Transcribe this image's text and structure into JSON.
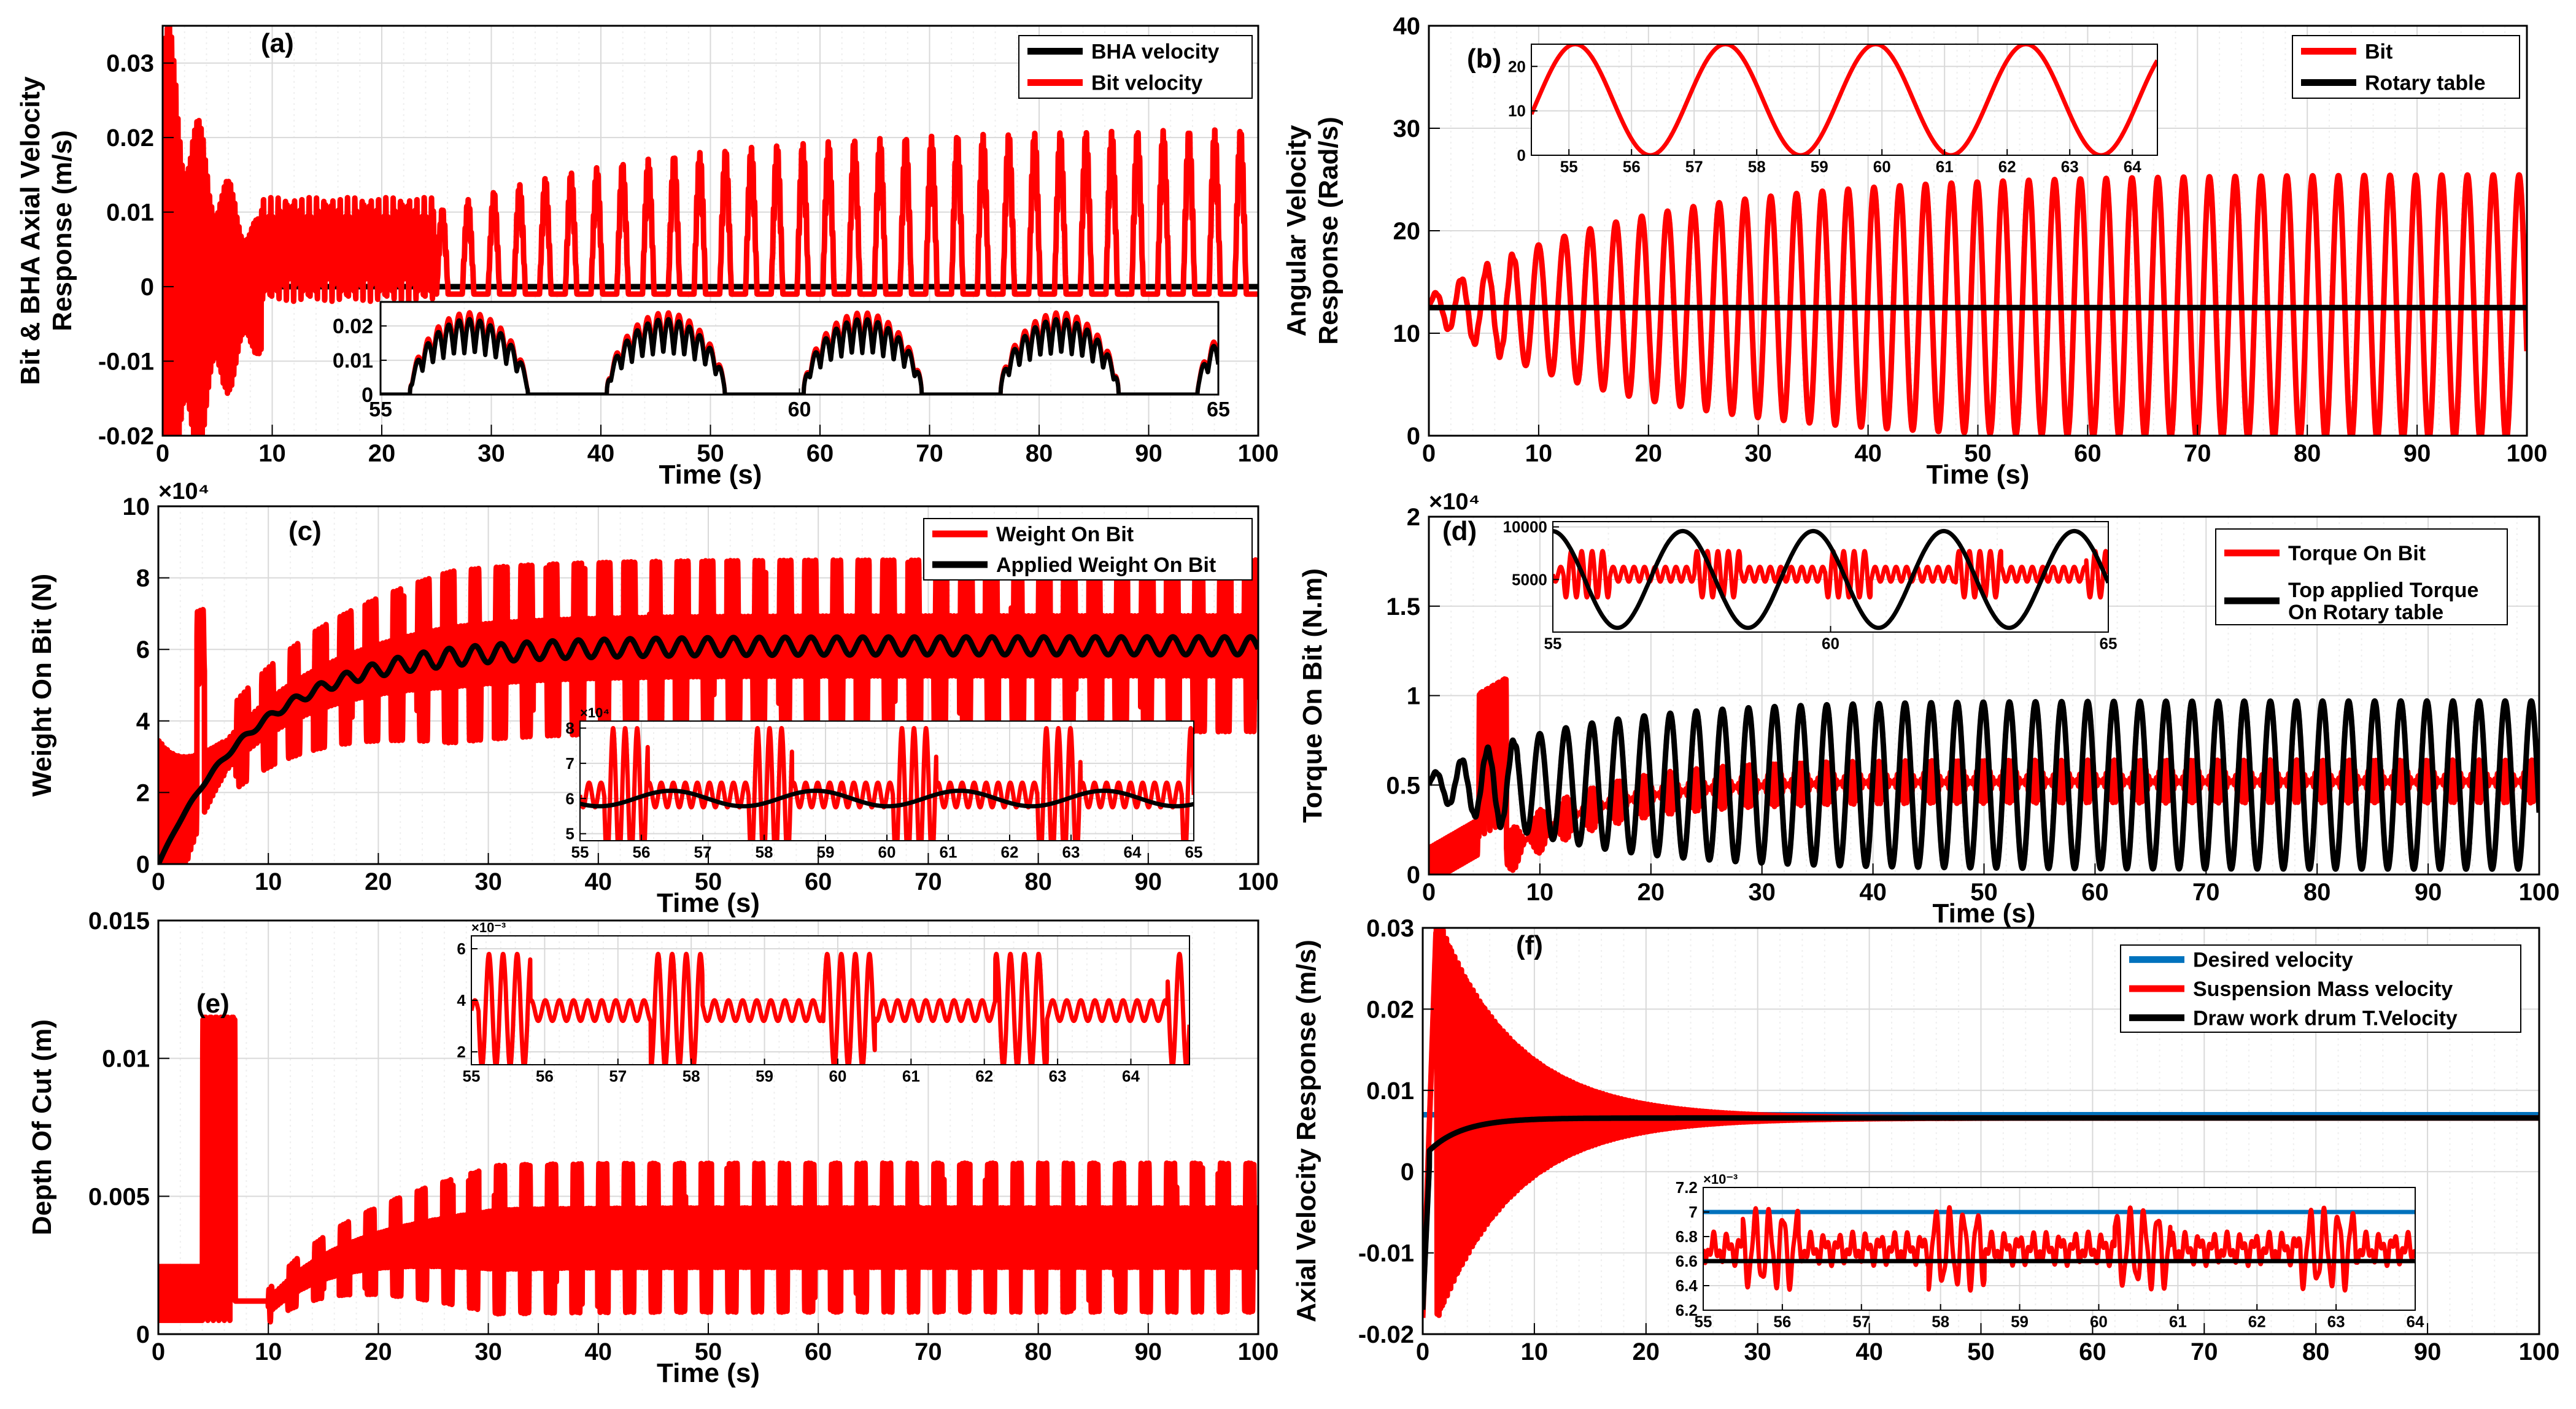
{
  "figure": {
    "panels": [
      "a",
      "b",
      "c",
      "d",
      "e",
      "f"
    ]
  },
  "colors": {
    "red": "#ff0000",
    "black": "#000000",
    "blue": "#0072bd",
    "grid": "#d9d9d9",
    "minor_grid": "#efefef"
  },
  "chart_data": [
    {
      "id": "a",
      "type": "line",
      "panel_label": "(a)",
      "xlabel": "Time (s)",
      "ylabel": [
        "Bit & BHA Axial Velocity",
        "Response (m/s)"
      ],
      "xlim": [
        0,
        100
      ],
      "ylim": [
        -0.02,
        0.035
      ],
      "xticks": [
        0,
        10,
        20,
        30,
        40,
        50,
        60,
        70,
        80,
        90,
        100
      ],
      "xtick_labels": [
        "0",
        "10",
        "20",
        "30",
        "40",
        "50",
        "60",
        "70",
        "80",
        "90",
        "100"
      ],
      "yticks": [
        -0.02,
        -0.01,
        0,
        0.01,
        0.02,
        0.03
      ],
      "ytick_labels": [
        "-0.02",
        "-0.01",
        "0",
        "0.01",
        "0.02",
        "0.03"
      ],
      "legend_position": "top-right",
      "series": [
        {
          "name": "BHA velocity",
          "color": "#000000",
          "model": "decay",
          "params": {
            "y0": 0,
            "yEnd": 0
          }
        },
        {
          "name": "Bit velocity",
          "color": "#ff0000",
          "model": "bitvel",
          "params": {
            "period": 2.35,
            "peak": 0.0225,
            "low": -0.001
          }
        }
      ],
      "inset": {
        "xlim": [
          55,
          65
        ],
        "ylim": [
          0,
          0.027
        ],
        "xticks": [
          55,
          60,
          65
        ],
        "xtick_labels": [
          "55",
          "60",
          "65"
        ],
        "yticks": [
          0,
          0.01,
          0.02
        ],
        "ytick_labels": [
          "0",
          "0.01",
          "0.02"
        ],
        "series": [
          {
            "name": "Bit velocity",
            "color": "#ff0000",
            "model": "inset_bursts",
            "params": {
              "period": 2.35,
              "peak": 0.024
            }
          },
          {
            "name": "BHA velocity",
            "color": "#000000",
            "model": "inset_bursts",
            "params": {
              "period": 2.35,
              "peak": 0.022
            }
          }
        ]
      }
    },
    {
      "id": "b",
      "type": "line",
      "panel_label": "(b)",
      "xlabel": "Time (s)",
      "ylabel": [
        "Angular  Velocity",
        "Response (Rad/s)"
      ],
      "xlim": [
        0,
        100
      ],
      "ylim": [
        0,
        40
      ],
      "xticks": [
        0,
        10,
        20,
        30,
        40,
        50,
        60,
        70,
        80,
        90,
        100
      ],
      "xtick_labels": [
        "0",
        "10",
        "20",
        "30",
        "40",
        "50",
        "60",
        "70",
        "80",
        "90",
        "100"
      ],
      "yticks": [
        0,
        10,
        20,
        30,
        40
      ],
      "ytick_labels": [
        "0",
        "10",
        "20",
        "30",
        "40"
      ],
      "legend_position": "top-right",
      "series": [
        {
          "name": "Bit",
          "color": "#ff0000",
          "model": "growsine",
          "params": {
            "mean": 12.5,
            "ampStart": 1,
            "ampEnd": 13,
            "tau": 18,
            "period": 2.35,
            "clip": 0
          }
        },
        {
          "name": "Rotary table",
          "color": "#000000",
          "model": "const",
          "params": {
            "value": 12.5
          }
        }
      ],
      "inset": {
        "xlim": [
          54.4,
          64.4
        ],
        "ylim": [
          0,
          25
        ],
        "xticks": [
          55,
          56,
          57,
          58,
          59,
          60,
          61,
          62,
          63,
          64
        ],
        "xtick_labels": [
          "55",
          "56",
          "57",
          "58",
          "59",
          "60",
          "61",
          "62",
          "63",
          "64"
        ],
        "yticks": [
          0,
          10,
          20
        ],
        "ytick_labels": [
          "0",
          "10",
          "20"
        ],
        "series": [
          {
            "name": "Bit",
            "color": "#ff0000",
            "model": "sine",
            "params": {
              "mean": 12.5,
              "amp": 12.5,
              "period": 2.4,
              "phase": 56.9,
              "clip": 0
            }
          }
        ]
      }
    },
    {
      "id": "c",
      "type": "line",
      "panel_label": "(c)",
      "xlabel": "Time (s)",
      "ylabel": [
        "Weight On Bit (N)"
      ],
      "exponent_label": "×10⁴",
      "xlim": [
        0,
        100
      ],
      "ylim": [
        0,
        10
      ],
      "xticks": [
        0,
        10,
        20,
        30,
        40,
        50,
        60,
        70,
        80,
        90,
        100
      ],
      "xtick_labels": [
        "0",
        "10",
        "20",
        "30",
        "40",
        "50",
        "60",
        "70",
        "80",
        "90",
        "100"
      ],
      "yticks": [
        0,
        2,
        4,
        6,
        8,
        10
      ],
      "ytick_labels": [
        "0",
        "2",
        "4",
        "6",
        "8",
        "10"
      ],
      "legend_position": "top-right",
      "series": [
        {
          "name": "Weight On Bit",
          "color": "#ff0000",
          "model": "wob",
          "params": {
            "final": 6.1,
            "tau": 9,
            "period": 2.35
          }
        },
        {
          "name": "Applied Weight On Bit",
          "color": "#000000",
          "model": "wobmean",
          "params": {
            "final": 6.1,
            "tau": 9,
            "period": 2.35,
            "ripple": 0.25
          }
        }
      ],
      "inset": {
        "exponent_label": "×10⁴",
        "xlim": [
          55,
          65
        ],
        "ylim": [
          4.8,
          8.2
        ],
        "xticks": [
          55,
          56,
          57,
          58,
          59,
          60,
          61,
          62,
          63,
          64,
          65
        ],
        "xtick_labels": [
          "55",
          "56",
          "57",
          "58",
          "59",
          "60",
          "61",
          "62",
          "63",
          "64",
          "65"
        ],
        "yticks": [
          5,
          6,
          7,
          8
        ],
        "ytick_labels": [
          "5",
          "6",
          "7",
          "8"
        ],
        "series": [
          {
            "name": "Weight On Bit",
            "color": "#ff0000",
            "model": "inset_wob",
            "params": {
              "mean": 6.1,
              "period": 2.35
            }
          },
          {
            "name": "Applied Weight On Bit",
            "color": "#000000",
            "model": "sine",
            "params": {
              "mean": 6.0,
              "amp": 0.22,
              "period": 2.35,
              "phase": 55.9
            }
          }
        ]
      }
    },
    {
      "id": "d",
      "type": "line",
      "panel_label": "(d)",
      "xlabel": "Time (s)",
      "ylabel": [
        "Torque On  Bit (N.m)"
      ],
      "exponent_label": "×10⁴",
      "xlim": [
        0,
        100
      ],
      "ylim": [
        0,
        2
      ],
      "xticks": [
        0,
        10,
        20,
        30,
        40,
        50,
        60,
        70,
        80,
        90,
        100
      ],
      "xtick_labels": [
        "0",
        "10",
        "20",
        "30",
        "40",
        "50",
        "60",
        "70",
        "80",
        "90",
        "100"
      ],
      "yticks": [
        0,
        0.5,
        1,
        1.5,
        2
      ],
      "ytick_labels": [
        "0",
        "0.5",
        "1",
        "1.5",
        "2"
      ],
      "legend_position": "top-right",
      "series": [
        {
          "name": "Torque On Bit",
          "color": "#ff0000",
          "model": "tob",
          "params": {
            "mean": 0.52,
            "period": 2.35
          }
        },
        {
          "name": "Top applied Torque On Rotary table",
          "legend_lines": [
            "Top applied Torque",
            "On Rotary table"
          ],
          "color": "#000000",
          "model": "growsine",
          "params": {
            "mean": 0.5,
            "ampStart": 0.05,
            "ampEnd": 0.47,
            "tau": 12,
            "period": 2.35,
            "clip": 0.01
          }
        }
      ],
      "inset": {
        "xlim": [
          55,
          65
        ],
        "ylim": [
          0,
          10500
        ],
        "xticks": [
          55,
          60,
          65
        ],
        "xtick_labels": [
          "55",
          "60",
          "65"
        ],
        "yticks": [
          5000,
          10000
        ],
        "ytick_labels": [
          "5000",
          "10000"
        ],
        "series": [
          {
            "name": "Torque On Bit",
            "color": "#ff0000",
            "model": "inset_tob",
            "params": {
              "mean": 5500,
              "period": 2.35
            }
          },
          {
            "name": "Top applied Torque On Rotary table",
            "color": "#000000",
            "model": "sine",
            "params": {
              "mean": 5000,
              "amp": 4600,
              "period": 2.35,
              "phase": 54.4
            }
          }
        ]
      }
    },
    {
      "id": "e",
      "type": "line",
      "panel_label": "(e)",
      "xlabel": "Time (s)",
      "ylabel": [
        "Depth Of Cut (m)"
      ],
      "xlim": [
        0,
        100
      ],
      "ylim": [
        0,
        0.015
      ],
      "xticks": [
        0,
        10,
        20,
        30,
        40,
        50,
        60,
        70,
        80,
        90,
        100
      ],
      "xtick_labels": [
        "0",
        "10",
        "20",
        "30",
        "40",
        "50",
        "60",
        "70",
        "80",
        "90",
        "100"
      ],
      "yticks": [
        0,
        0.005,
        0.01,
        0.015
      ],
      "ytick_labels": [
        "0",
        "0.005",
        "0.01",
        "0.015"
      ],
      "series": [
        {
          "name": "Depth Of Cut",
          "color": "#ff0000",
          "model": "doc",
          "params": {
            "mean": 0.0035,
            "period": 2.35
          }
        }
      ],
      "inset": {
        "exponent_label": "×10⁻³",
        "xlim": [
          55,
          64.8
        ],
        "ylim": [
          1.5,
          6.5
        ],
        "xticks": [
          55,
          56,
          57,
          58,
          59,
          60,
          61,
          62,
          63,
          64
        ],
        "xtick_labels": [
          "55",
          "56",
          "57",
          "58",
          "59",
          "60",
          "61",
          "62",
          "63",
          "64"
        ],
        "yticks": [
          2,
          4,
          6
        ],
        "ytick_labels": [
          "2",
          "4",
          "6"
        ],
        "series": [
          {
            "name": "Depth Of Cut",
            "color": "#ff0000",
            "model": "inset_doc",
            "params": {
              "mean": 3.6,
              "period": 2.35
            }
          }
        ]
      }
    },
    {
      "id": "f",
      "type": "line",
      "panel_label": "(f)",
      "xlabel": "",
      "ylabel": [
        "Axial Velocity Response (m/s)"
      ],
      "xlim": [
        0,
        100
      ],
      "ylim": [
        -0.02,
        0.03
      ],
      "xticks": [
        0,
        10,
        20,
        30,
        40,
        50,
        60,
        70,
        80,
        90,
        100
      ],
      "xtick_labels": [
        "0",
        "10",
        "20",
        "30",
        "40",
        "50",
        "60",
        "70",
        "80",
        "90",
        "100"
      ],
      "yticks": [
        -0.02,
        -0.01,
        0,
        0.01,
        0.02,
        0.03
      ],
      "ytick_labels": [
        "-0.02",
        "-0.01",
        "0",
        "0.01",
        "0.02",
        "0.03"
      ],
      "legend_position": "top-right",
      "series": [
        {
          "name": "Desired velocity",
          "color": "#0072bd",
          "model": "const",
          "params": {
            "value": 0.007
          }
        },
        {
          "name": "Suspension Mass velocity",
          "color": "#ff0000",
          "model": "decaying_osc",
          "params": {
            "final": 0.0066,
            "amp0": 0.03,
            "tau": 7
          }
        },
        {
          "name": "Draw work drum T.Velocity",
          "color": "#000000",
          "model": "drum",
          "params": {
            "final": 0.0066
          }
        }
      ],
      "inset": {
        "exponent_label": "×10⁻³",
        "xlim": [
          55,
          64
        ],
        "ylim": [
          6.2,
          7.2
        ],
        "xticks": [
          55,
          56,
          57,
          58,
          59,
          60,
          61,
          62,
          63,
          64
        ],
        "xtick_labels": [
          "55",
          "56",
          "57",
          "58",
          "59",
          "60",
          "61",
          "62",
          "63",
          "64"
        ],
        "yticks": [
          6.2,
          6.4,
          6.6,
          6.8,
          7,
          7.2
        ],
        "ytick_labels": [
          "6.2",
          "6.4",
          "6.6",
          "6.8",
          "7",
          "7.2"
        ],
        "series": [
          {
            "name": "Desired velocity",
            "color": "#0072bd",
            "model": "const",
            "params": {
              "value": 7.0
            }
          },
          {
            "name": "Suspension Mass velocity",
            "color": "#ff0000",
            "model": "inset_susp",
            "params": {
              "mean": 6.7,
              "period": 2.35
            }
          },
          {
            "name": "Draw work drum T.Velocity",
            "color": "#000000",
            "model": "const",
            "params": {
              "value": 6.6
            }
          }
        ]
      }
    }
  ]
}
